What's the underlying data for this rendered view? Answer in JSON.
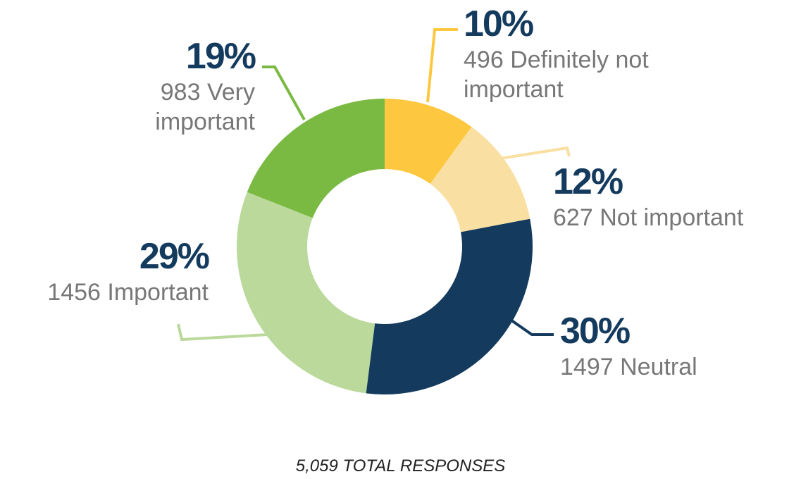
{
  "chart_data": {
    "type": "donut",
    "categories": [
      "Definitely not important",
      "Not important",
      "Neutral",
      "Important",
      "Very important"
    ],
    "counts": [
      496,
      627,
      1497,
      1456,
      983
    ],
    "values": [
      10,
      12,
      30,
      29,
      19
    ],
    "value_labels": [
      "10%",
      "12%",
      "30%",
      "29%",
      "19%"
    ],
    "colors": [
      "#fdc840",
      "#f9dfa1",
      "#143b5e",
      "#bbd99b",
      "#7aba42"
    ],
    "note": "5,059 TOTAL RESPONSES"
  }
}
